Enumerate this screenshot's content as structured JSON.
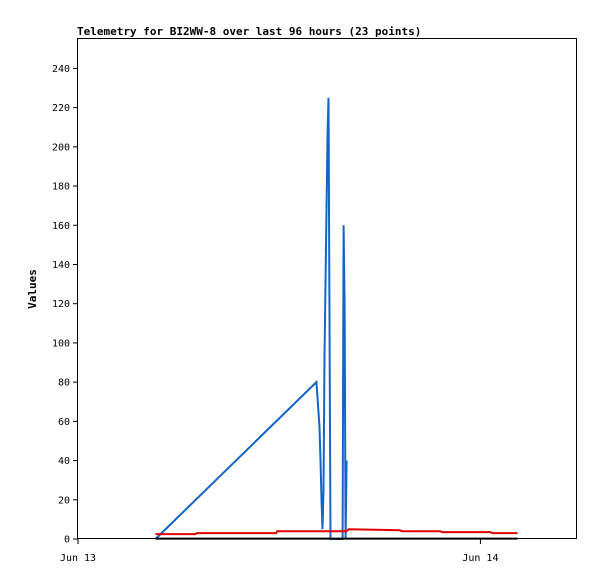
{
  "chart_data": {
    "type": "line",
    "title": "Telemetry for BI2WW-8 over last 96 hours (23 points)",
    "ylabel": "Values",
    "xlabel": "",
    "ylim": [
      0,
      255
    ],
    "xlim": [
      0,
      24.8
    ],
    "yticks": [
      0,
      20,
      40,
      60,
      80,
      100,
      120,
      140,
      160,
      180,
      200,
      220,
      240
    ],
    "xticks": [
      {
        "value": 0,
        "label": "Jun 13"
      },
      {
        "value": 20.0,
        "label": "Jun 14"
      }
    ],
    "grid": false,
    "colors": {
      "blue": "#1464c8",
      "red": "#e00000",
      "black": "#000000"
    },
    "series": [
      {
        "color": "#1464c8",
        "x": [
          3.85,
          11.85,
          11.92,
          12.0,
          12.05,
          12.1,
          12.15,
          12.2,
          12.25,
          12.3,
          12.35,
          12.4,
          12.45,
          12.5,
          12.55,
          13.15,
          13.2,
          13.25,
          13.3,
          13.35
        ],
        "values": [
          0,
          80,
          70,
          57,
          40,
          20,
          5,
          25,
          93,
          130,
          168,
          205,
          225,
          112,
          0,
          0,
          160,
          120,
          0,
          40
        ]
      },
      {
        "color": "#e00000",
        "x": [
          3.85,
          5.85,
          5.9,
          9.85,
          9.9,
          13.35,
          13.45,
          16.0,
          16.1,
          18.0,
          18.1,
          20.5,
          20.6,
          21.85
        ],
        "values": [
          2.5,
          2.5,
          3.0,
          3.0,
          4.0,
          4.0,
          5.0,
          4.5,
          4.0,
          4.0,
          3.5,
          3.5,
          3.0,
          3.0
        ]
      },
      {
        "color": "#000000",
        "x": [
          3.85,
          21.85
        ],
        "values": [
          0.2,
          0.2
        ]
      }
    ]
  }
}
